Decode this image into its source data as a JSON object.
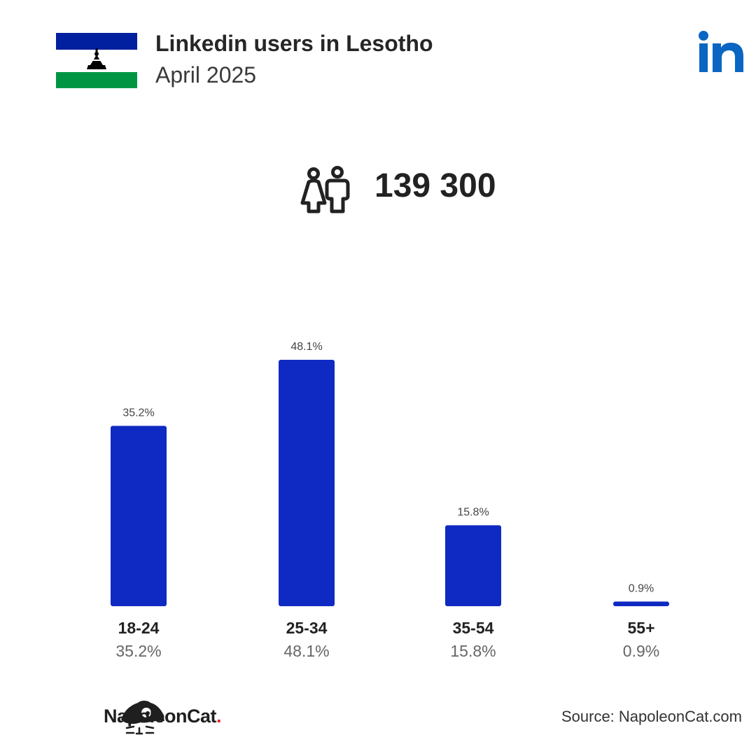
{
  "header": {
    "title": "Linkedin users in Lesotho",
    "subtitle": "April 2025"
  },
  "total_users": "139 300",
  "icons": {
    "flag": "lesotho-flag-icon",
    "logo": "linkedin-logo-icon",
    "people": "people-icon",
    "brand": "napoleoncat-logo-icon"
  },
  "colors": {
    "bar": "#0f2ac2",
    "linkedin": "#0a66c2",
    "flag_blue": "#00209f",
    "flag_green": "#009543"
  },
  "chart_data": {
    "type": "bar",
    "categories": [
      "18-24",
      "25-34",
      "35-54",
      "55+"
    ],
    "values": [
      35.2,
      48.1,
      15.8,
      0.9
    ],
    "value_labels": [
      "35.2%",
      "48.1%",
      "15.8%",
      "0.9%"
    ],
    "title": "",
    "xlabel": "",
    "ylabel": "",
    "ylim": [
      0,
      48.1
    ],
    "grid": false,
    "legend": "none"
  },
  "footer": {
    "brand_name": "NapoleonCat",
    "brand_dot": ".",
    "source": "Source: NapoleonCat.com"
  }
}
